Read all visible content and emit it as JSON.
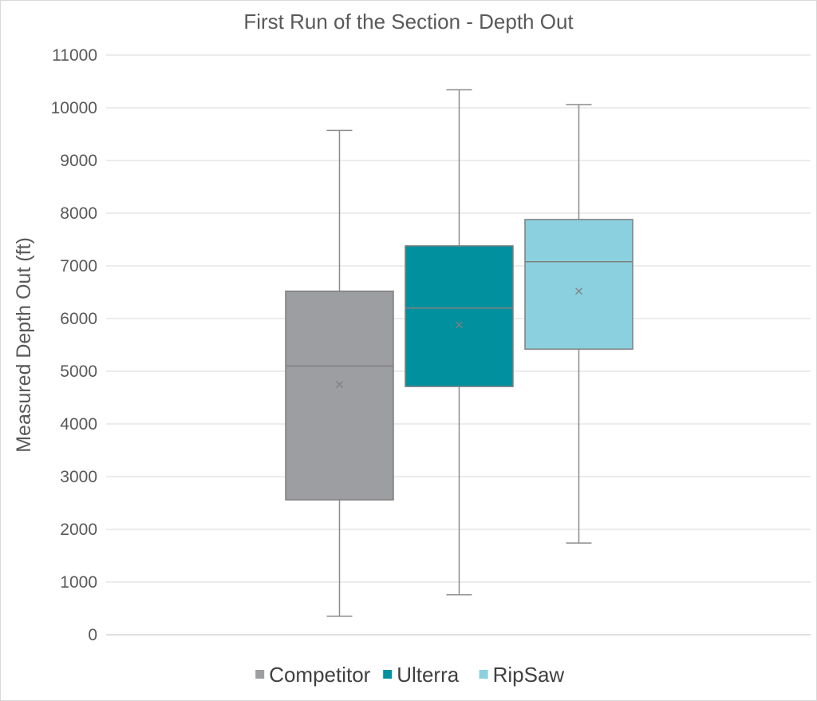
{
  "chart_data": {
    "type": "box",
    "title": "First Run of the Section - Depth Out",
    "xlabel": "",
    "ylabel": "Measured Depth Out (ft)",
    "ylim": [
      0,
      11000
    ],
    "y_ticks": [
      0,
      1000,
      2000,
      3000,
      4000,
      5000,
      6000,
      7000,
      8000,
      9000,
      10000,
      11000
    ],
    "grid": true,
    "legend_position": "bottom",
    "series": [
      {
        "name": "Competitor",
        "color": "#9d9ea2",
        "min": 350,
        "q1": 2560,
        "median": 5100,
        "q3": 6520,
        "max": 9570,
        "mean": 4750
      },
      {
        "name": "Ulterra",
        "color": "#00909e",
        "min": 760,
        "q1": 4710,
        "median": 6200,
        "q3": 7380,
        "max": 10340,
        "mean": 5880
      },
      {
        "name": "RipSaw",
        "color": "#8bd0df",
        "min": 1740,
        "q1": 5420,
        "median": 7080,
        "q3": 7880,
        "max": 10060,
        "mean": 6520
      }
    ]
  }
}
